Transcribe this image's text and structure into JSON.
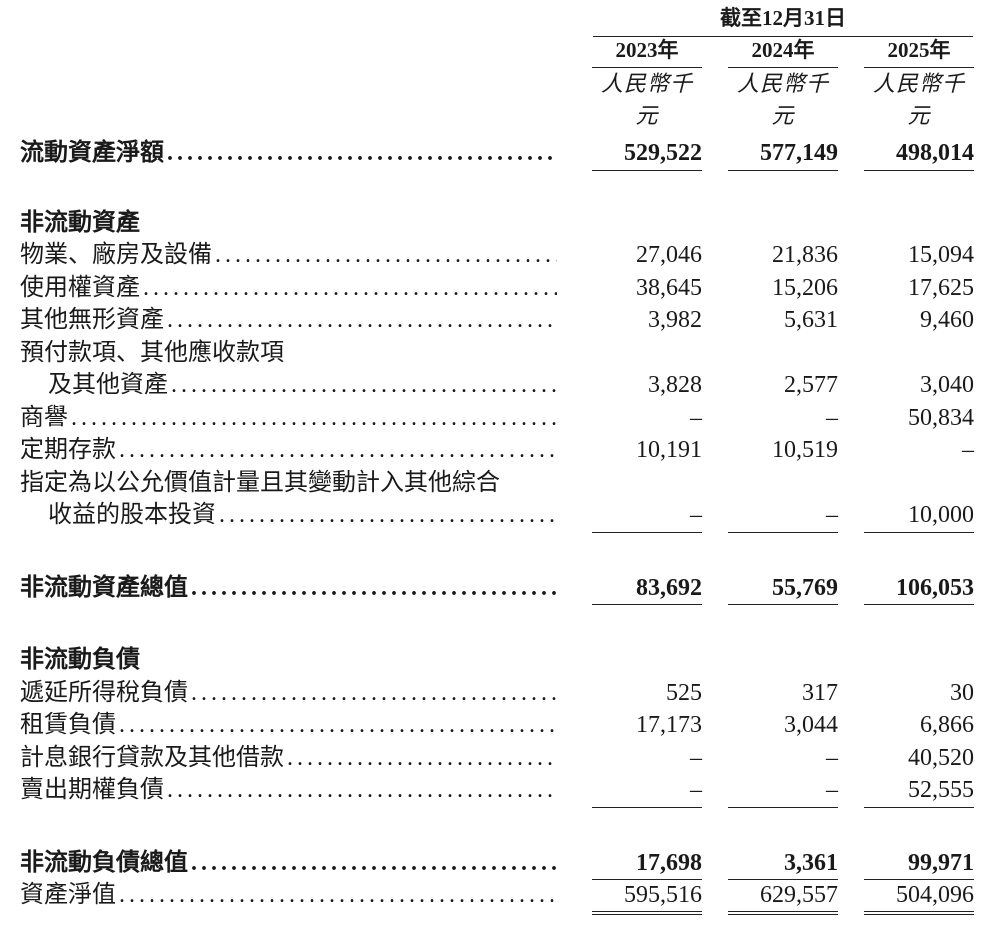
{
  "header": {
    "period": "截至12月31日",
    "years": [
      "2023年",
      "2024年",
      "2025年"
    ],
    "unit": "人民幣千元"
  },
  "rows": [
    {
      "type": "blank"
    },
    {
      "type": "item",
      "label": "流動資產淨額",
      "values": [
        "529,522",
        "577,149",
        "498,014"
      ],
      "bold": true,
      "rule": true
    },
    {
      "type": "blank"
    },
    {
      "type": "section",
      "label": "非流動資產"
    },
    {
      "type": "item",
      "label": "物業、廠房及設備",
      "values": [
        "27,046",
        "21,836",
        "15,094"
      ]
    },
    {
      "type": "item",
      "label": "使用權資產",
      "values": [
        "38,645",
        "15,206",
        "17,625"
      ]
    },
    {
      "type": "item",
      "label": "其他無形資產",
      "values": [
        "3,982",
        "5,631",
        "9,460"
      ]
    },
    {
      "type": "cont",
      "label": "預付款項、其他應收款項"
    },
    {
      "type": "item",
      "label": "及其他資產",
      "values": [
        "3,828",
        "2,577",
        "3,040"
      ],
      "indent": true
    },
    {
      "type": "item",
      "label": "商譽",
      "values": [
        "–",
        "–",
        "50,834"
      ]
    },
    {
      "type": "item",
      "label": "定期存款",
      "values": [
        "10,191",
        "10,519",
        "–"
      ]
    },
    {
      "type": "cont",
      "label": "指定為以公允價值計量且其變動計入其他綜合"
    },
    {
      "type": "item",
      "label": "收益的股本投資",
      "values": [
        "–",
        "–",
        "10,000"
      ],
      "indent": true,
      "rule": true
    },
    {
      "type": "blank"
    },
    {
      "type": "item",
      "label": "非流動資產總值",
      "values": [
        "83,692",
        "55,769",
        "106,053"
      ],
      "bold": true,
      "rule": true
    },
    {
      "type": "blank"
    },
    {
      "type": "section",
      "label": "非流動負債"
    },
    {
      "type": "item",
      "label": "遞延所得稅負債",
      "values": [
        "525",
        "317",
        "30"
      ]
    },
    {
      "type": "item",
      "label": "租賃負債",
      "values": [
        "17,173",
        "3,044",
        "6,866"
      ]
    },
    {
      "type": "item",
      "label": "計息銀行貸款及其他借款",
      "values": [
        "–",
        "–",
        "40,520"
      ]
    },
    {
      "type": "item",
      "label": "賣出期權負債",
      "values": [
        "–",
        "–",
        "52,555"
      ],
      "rule": true
    },
    {
      "type": "blank"
    },
    {
      "type": "item",
      "label": "非流動負債總值",
      "values": [
        "17,698",
        "3,361",
        "99,971"
      ],
      "bold": true,
      "rule": true
    },
    {
      "type": "item",
      "label": "資產淨值",
      "values": [
        "595,516",
        "629,557",
        "504,096"
      ],
      "double": true
    }
  ]
}
